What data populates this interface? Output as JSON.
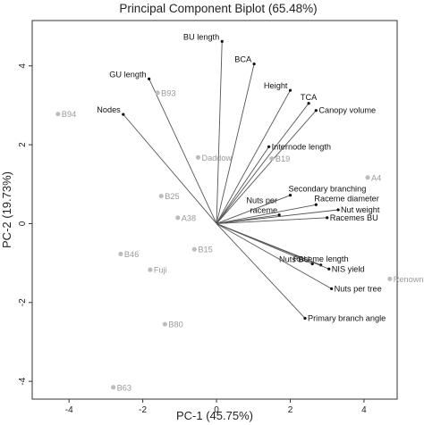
{
  "chart_data": {
    "type": "scatter",
    "subtype": "biplot",
    "title": "Principal Component Biplot (65.48%)",
    "xlabel": "PC-1 (45.75%)",
    "ylabel": "PC-2 (19.73%)",
    "xlim": [
      -5.0,
      4.9
    ],
    "ylim": [
      -4.45,
      5.15
    ],
    "xticks": [
      -4,
      -2,
      0,
      2,
      4
    ],
    "yticks": [
      -4,
      -2,
      0,
      2,
      4
    ],
    "grid": false,
    "colors": {
      "vector": "#555555",
      "point": "#bdbdbd",
      "obs_text": "#9a9a9a",
      "var_text": "#111111",
      "frame": "#333333"
    },
    "variables": [
      {
        "name": "BU length",
        "x": 0.15,
        "y": 4.62,
        "label_pos": "left"
      },
      {
        "name": "BCA",
        "x": 1.02,
        "y": 4.05,
        "label_pos": "left"
      },
      {
        "name": "GU length",
        "x": -1.83,
        "y": 3.67,
        "label_pos": "left"
      },
      {
        "name": "Height",
        "x": 2.0,
        "y": 3.38,
        "label_pos": "left"
      },
      {
        "name": "TCA",
        "x": 2.5,
        "y": 3.05,
        "label_pos": "above"
      },
      {
        "name": "Canopy volume",
        "x": 2.7,
        "y": 2.87,
        "label_pos": "right"
      },
      {
        "name": "Nodes",
        "x": -2.53,
        "y": 2.77,
        "label_pos": "left"
      },
      {
        "name": "Internode length",
        "x": 1.42,
        "y": 1.95,
        "label_pos": "right"
      },
      {
        "name": "Secondary branching",
        "x": 2.0,
        "y": 0.72,
        "label_pos": "right-up"
      },
      {
        "name": "Raceme diameter",
        "x": 2.7,
        "y": 0.48,
        "label_pos": "right-up"
      },
      {
        "name": "Nut weight",
        "x": 3.3,
        "y": 0.35,
        "label_pos": "right"
      },
      {
        "name": "Nuts per raceme",
        "x": 1.7,
        "y": 0.22,
        "label_pos": "left-up"
      },
      {
        "name": "Racemes BU",
        "x": 3.0,
        "y": 0.15,
        "label_pos": "right"
      },
      {
        "name": "Raceme length",
        "x": 2.83,
        "y": -1.05,
        "label_pos": "above"
      },
      {
        "name": "Nuts BU",
        "x": 2.6,
        "y": -1.02,
        "label_pos": "left"
      },
      {
        "name": "NIS yield",
        "x": 3.05,
        "y": -1.15,
        "label_pos": "right"
      },
      {
        "name": "Nuts per tree",
        "x": 3.12,
        "y": -1.65,
        "label_pos": "right"
      },
      {
        "name": "Primary branch angle",
        "x": 2.4,
        "y": -2.4,
        "label_pos": "right"
      }
    ],
    "observations": [
      {
        "name": "B94",
        "x": -4.3,
        "y": 2.78
      },
      {
        "name": "B93",
        "x": -1.6,
        "y": 3.32
      },
      {
        "name": "Daddow",
        "x": -0.5,
        "y": 1.68
      },
      {
        "name": "B19",
        "x": 1.5,
        "y": 1.65
      },
      {
        "name": "A4",
        "x": 4.1,
        "y": 1.17
      },
      {
        "name": "B25",
        "x": -1.5,
        "y": 0.7
      },
      {
        "name": "A38",
        "x": -1.05,
        "y": 0.15
      },
      {
        "name": "B15",
        "x": -0.6,
        "y": -0.65
      },
      {
        "name": "B46",
        "x": -2.6,
        "y": -0.77
      },
      {
        "name": "Fuji",
        "x": -1.8,
        "y": -1.17
      },
      {
        "name": "Renown",
        "x": 4.7,
        "y": -1.4
      },
      {
        "name": "B80",
        "x": -1.4,
        "y": -2.55
      },
      {
        "name": "B63",
        "x": -2.8,
        "y": -4.15
      }
    ]
  }
}
